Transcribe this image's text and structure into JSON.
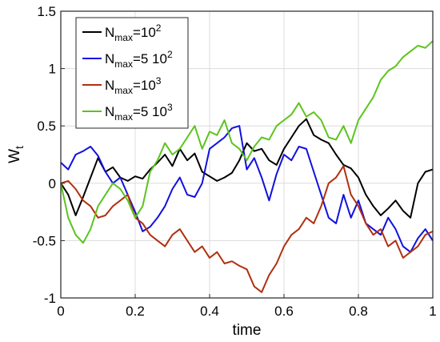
{
  "chart_data": {
    "type": "line",
    "xlabel": "time",
    "ylabel_main": "W",
    "ylabel_sub": "t",
    "xlim": [
      0,
      1
    ],
    "ylim": [
      -1,
      1.5
    ],
    "xticks": [
      "0",
      "0.2",
      "0.4",
      "0.6",
      "0.8",
      "1"
    ],
    "yticks": [
      "-1",
      "-0.5",
      "0",
      "0.5",
      "1",
      "1.5"
    ],
    "grid": true,
    "legend_position": "top-left",
    "series": [
      {
        "name": "N_max=10^2",
        "legend": {
          "base": "N",
          "sub": "max",
          "eq": "=10",
          "sup": "2"
        },
        "color": "#000000",
        "x": [
          0.0,
          0.02,
          0.04,
          0.06,
          0.08,
          0.1,
          0.12,
          0.14,
          0.16,
          0.18,
          0.2,
          0.22,
          0.24,
          0.26,
          0.28,
          0.3,
          0.32,
          0.34,
          0.36,
          0.38,
          0.4,
          0.42,
          0.44,
          0.46,
          0.48,
          0.5,
          0.52,
          0.54,
          0.56,
          0.58,
          0.6,
          0.62,
          0.64,
          0.66,
          0.68,
          0.7,
          0.72,
          0.74,
          0.76,
          0.78,
          0.8,
          0.82,
          0.84,
          0.86,
          0.88,
          0.9,
          0.92,
          0.94,
          0.96,
          0.98,
          1.0
        ],
        "y": [
          0.0,
          -0.1,
          -0.28,
          -0.12,
          0.05,
          0.22,
          0.1,
          0.14,
          0.05,
          0.02,
          0.06,
          0.04,
          0.12,
          0.18,
          0.25,
          0.15,
          0.3,
          0.2,
          0.26,
          0.1,
          0.06,
          0.02,
          0.05,
          0.09,
          0.2,
          0.35,
          0.28,
          0.3,
          0.2,
          0.16,
          0.3,
          0.4,
          0.5,
          0.56,
          0.42,
          0.38,
          0.35,
          0.25,
          0.16,
          0.13,
          0.05,
          -0.1,
          -0.2,
          -0.28,
          -0.22,
          -0.15,
          -0.24,
          -0.3,
          0.0,
          0.1,
          0.12
        ]
      },
      {
        "name": "N_max=5 10^2",
        "legend": {
          "base": "N",
          "sub": "max",
          "eq": "=5 10",
          "sup": "2"
        },
        "color": "#1111dd",
        "x": [
          0.0,
          0.02,
          0.04,
          0.06,
          0.08,
          0.1,
          0.12,
          0.14,
          0.16,
          0.18,
          0.2,
          0.22,
          0.24,
          0.26,
          0.28,
          0.3,
          0.32,
          0.34,
          0.36,
          0.38,
          0.4,
          0.42,
          0.44,
          0.46,
          0.48,
          0.5,
          0.52,
          0.54,
          0.56,
          0.58,
          0.6,
          0.62,
          0.64,
          0.66,
          0.68,
          0.7,
          0.72,
          0.74,
          0.76,
          0.78,
          0.8,
          0.82,
          0.84,
          0.86,
          0.88,
          0.9,
          0.92,
          0.94,
          0.96,
          0.98,
          1.0
        ],
        "y": [
          0.18,
          0.12,
          0.25,
          0.28,
          0.32,
          0.24,
          0.1,
          0.0,
          0.05,
          -0.1,
          -0.25,
          -0.42,
          -0.38,
          -0.3,
          -0.2,
          -0.05,
          0.05,
          -0.1,
          -0.12,
          0.0,
          0.3,
          0.35,
          0.4,
          0.48,
          0.5,
          0.12,
          0.22,
          0.05,
          -0.15,
          0.08,
          0.25,
          0.2,
          0.32,
          0.3,
          0.1,
          -0.1,
          -0.3,
          -0.35,
          -0.1,
          -0.3,
          -0.15,
          -0.35,
          -0.4,
          -0.45,
          -0.3,
          -0.4,
          -0.55,
          -0.6,
          -0.48,
          -0.4,
          -0.5
        ]
      },
      {
        "name": "N_max=10^3",
        "legend": {
          "base": "N",
          "sub": "max",
          "eq": "=10",
          "sup": "3"
        },
        "color": "#b03010",
        "x": [
          0.0,
          0.02,
          0.04,
          0.06,
          0.08,
          0.1,
          0.12,
          0.14,
          0.16,
          0.18,
          0.2,
          0.22,
          0.24,
          0.26,
          0.28,
          0.3,
          0.32,
          0.34,
          0.36,
          0.38,
          0.4,
          0.42,
          0.44,
          0.46,
          0.48,
          0.5,
          0.52,
          0.54,
          0.56,
          0.58,
          0.6,
          0.62,
          0.64,
          0.66,
          0.68,
          0.7,
          0.72,
          0.74,
          0.76,
          0.78,
          0.8,
          0.82,
          0.84,
          0.86,
          0.88,
          0.9,
          0.92,
          0.94,
          0.96,
          0.98,
          1.0
        ],
        "y": [
          0.0,
          0.02,
          -0.05,
          -0.15,
          -0.2,
          -0.3,
          -0.28,
          -0.2,
          -0.15,
          -0.1,
          -0.3,
          -0.35,
          -0.45,
          -0.5,
          -0.55,
          -0.45,
          -0.4,
          -0.5,
          -0.6,
          -0.55,
          -0.65,
          -0.6,
          -0.7,
          -0.68,
          -0.72,
          -0.75,
          -0.9,
          -0.95,
          -0.8,
          -0.7,
          -0.55,
          -0.45,
          -0.4,
          -0.3,
          -0.35,
          -0.2,
          0.0,
          0.05,
          0.15,
          -0.1,
          -0.2,
          -0.35,
          -0.45,
          -0.4,
          -0.55,
          -0.5,
          -0.65,
          -0.6,
          -0.55,
          -0.45,
          -0.42
        ]
      },
      {
        "name": "N_max=5 10^3",
        "legend": {
          "base": "N",
          "sub": "max",
          "eq": "=5 10",
          "sup": "3"
        },
        "color": "#5cc41e",
        "x": [
          0.0,
          0.02,
          0.04,
          0.06,
          0.08,
          0.1,
          0.12,
          0.14,
          0.16,
          0.18,
          0.2,
          0.22,
          0.24,
          0.26,
          0.28,
          0.3,
          0.32,
          0.34,
          0.36,
          0.38,
          0.4,
          0.42,
          0.44,
          0.46,
          0.48,
          0.5,
          0.52,
          0.54,
          0.56,
          0.58,
          0.6,
          0.62,
          0.64,
          0.66,
          0.68,
          0.7,
          0.72,
          0.74,
          0.76,
          0.78,
          0.8,
          0.82,
          0.84,
          0.86,
          0.88,
          0.9,
          0.92,
          0.94,
          0.96,
          0.98,
          1.0
        ],
        "y": [
          0.0,
          -0.3,
          -0.45,
          -0.52,
          -0.4,
          -0.2,
          -0.1,
          0.0,
          -0.05,
          -0.15,
          -0.3,
          -0.2,
          0.1,
          0.2,
          0.35,
          0.25,
          0.3,
          0.4,
          0.5,
          0.3,
          0.45,
          0.42,
          0.55,
          0.35,
          0.3,
          0.2,
          0.32,
          0.4,
          0.38,
          0.5,
          0.55,
          0.6,
          0.7,
          0.58,
          0.62,
          0.55,
          0.4,
          0.38,
          0.5,
          0.35,
          0.55,
          0.65,
          0.75,
          0.9,
          0.98,
          1.02,
          1.1,
          1.15,
          1.2,
          1.18,
          1.24
        ]
      }
    ]
  }
}
